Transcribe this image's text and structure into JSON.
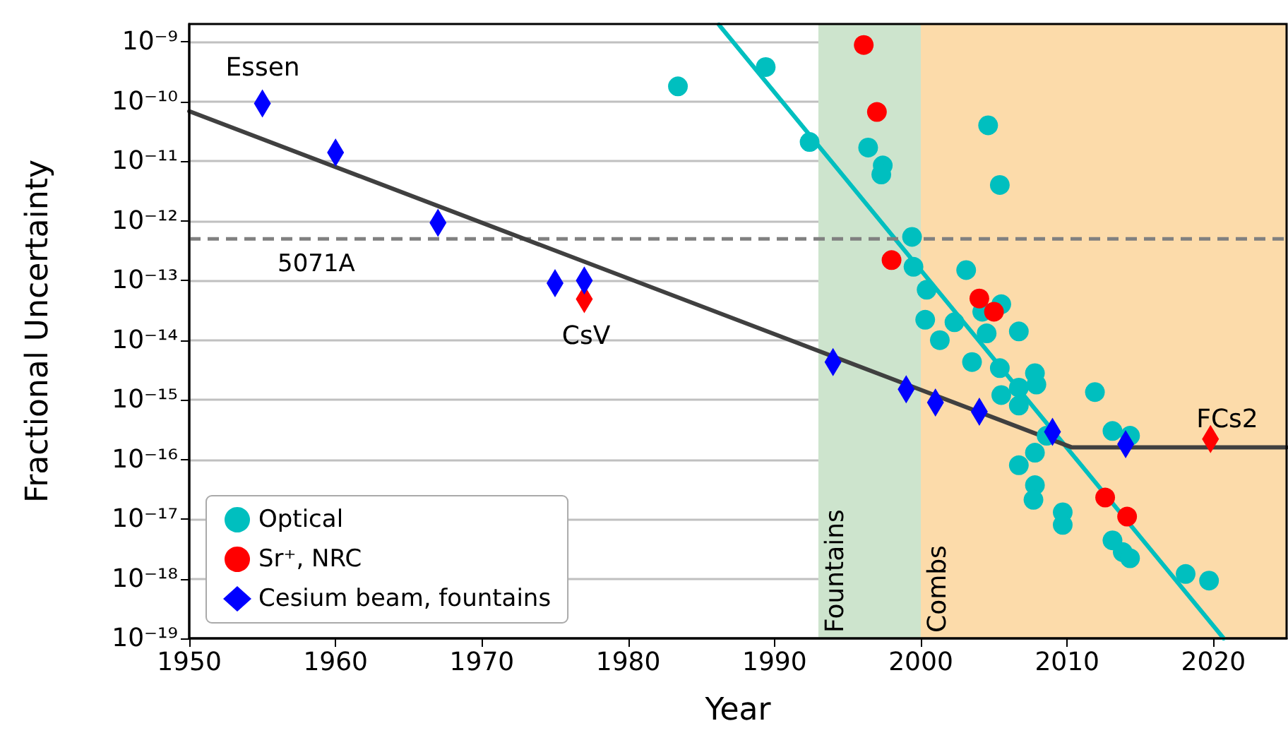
{
  "chart_data": {
    "type": "scatter",
    "xlabel": "Year",
    "ylabel": "Fractional Uncertainty",
    "log": "y",
    "grid": "y",
    "legend": "bottom left",
    "xlim": [
      1950,
      2025
    ],
    "xticks": [
      1950,
      1960,
      1970,
      1980,
      1990,
      2000,
      2010,
      2020
    ],
    "ylim": [
      1e-19,
      2e-09
    ],
    "yticks": [
      {
        "value": 1e-19,
        "label": "10⁻¹⁹"
      },
      {
        "value": 1e-18,
        "label": "10⁻¹⁸"
      },
      {
        "value": 1e-17,
        "label": "10⁻¹⁷"
      },
      {
        "value": 1e-16,
        "label": "10⁻¹⁶"
      },
      {
        "value": 1e-15,
        "label": "10⁻¹⁵"
      },
      {
        "value": 1e-14,
        "label": "10⁻¹⁴"
      },
      {
        "value": 1e-13,
        "label": "10⁻¹³"
      },
      {
        "value": 1e-12,
        "label": "10⁻¹²"
      },
      {
        "value": 1e-11,
        "label": "10⁻¹¹"
      },
      {
        "value": 1e-10,
        "label": "10⁻¹⁰"
      },
      {
        "value": 1e-09,
        "label": "10⁻⁹"
      }
    ],
    "bands": [
      {
        "axis": "x",
        "from": 1993,
        "to": 2000,
        "label": "Fountains",
        "color": "#cde4cd"
      },
      {
        "axis": "x",
        "from": 2000,
        "to": 2025,
        "label": "Combs",
        "color": "#fcdbaa"
      }
    ],
    "ref_lines": [
      {
        "axis": "y",
        "value": 5e-13,
        "label": "5071A",
        "color": "#808080",
        "line_style": "dashed"
      }
    ],
    "annotations": [
      "Essen",
      "CsV",
      "FCs2"
    ],
    "series": [
      {
        "type": "line",
        "color": "#00bfbf",
        "marker": "none",
        "x": [
          1986.2,
          2020.7
        ],
        "values": [
          1.95e-09,
          1e-19
        ]
      },
      {
        "type": "line",
        "color": "#404040",
        "marker": "none",
        "x": [
          1950,
          2010.3,
          2025
        ],
        "values": [
          6.9e-11,
          1.6e-16,
          1.6e-16
        ]
      },
      {
        "name": "Optical",
        "color": "#00bfbf",
        "marker": "circle",
        "x": [
          1983.4,
          1989.4,
          1992.4,
          1996.4,
          1997.4,
          1997.3,
          2004.6,
          2005.4,
          1999.4,
          1999.5,
          2003.1,
          2000.4,
          2000.3,
          2002.3,
          2001.3,
          2004.5,
          2005.5,
          2006.7,
          2003.5,
          2005.4,
          2004.2,
          2005.5,
          2006.7,
          2006.7,
          2007.8,
          2007.9,
          2008.6,
          2011.9,
          2013.1,
          2014.3,
          2007.8,
          2006.7,
          2007.8,
          2007.7,
          2009.7,
          2009.7,
          2012.2,
          2013.1,
          2013.8,
          2014.3,
          2018.1,
          2019.7
        ],
        "values": [
          1.8e-10,
          3.8e-10,
          2.1e-11,
          1.7e-11,
          8.5e-12,
          6e-12,
          4e-11,
          4e-12,
          5.4e-13,
          1.7e-13,
          1.5e-13,
          7e-14,
          2.2e-14,
          2e-14,
          1e-14,
          1.3e-14,
          4e-14,
          1.4e-14,
          4.3e-15,
          3.4e-15,
          3e-14,
          1.2e-15,
          1.6e-15,
          8e-16,
          2.8e-15,
          1.8e-15,
          2.5e-16,
          1.35e-15,
          3e-16,
          2.5e-16,
          1.3e-16,
          8e-17,
          3.7e-17,
          2.1e-17,
          1.3e-17,
          8e-18,
          null,
          4.4e-18,
          2.8e-18,
          2.2e-18,
          1.2e-18,
          9.3e-19
        ]
      },
      {
        "name": "Sr⁺, NRC",
        "color": "#ff0000",
        "marker": "circle",
        "x": [
          1996.1,
          1997,
          1998,
          2004,
          2005,
          2012.6,
          2014.1
        ],
        "values": [
          8.9e-10,
          6.7e-11,
          2.2e-13,
          5e-14,
          3e-14,
          2.3e-17,
          1.1e-17
        ]
      },
      {
        "color": "#ff0000",
        "marker": "diamond",
        "x": [
          1977,
          2019.8
        ],
        "values": [
          4.9e-14,
          2.2e-16
        ]
      },
      {
        "name": "Cesium beam, fountains",
        "color": "#0000ff",
        "marker": "diamond",
        "x": [
          1955,
          1960,
          1967,
          1975,
          1977,
          1994,
          1999,
          2001,
          2004,
          2009,
          2014
        ],
        "values": [
          9.3e-11,
          1.4e-11,
          9.3e-13,
          9e-14,
          1e-13,
          4.3e-15,
          1.5e-15,
          9e-16,
          6.3e-16,
          2.9e-16,
          1.8e-16
        ]
      }
    ]
  }
}
